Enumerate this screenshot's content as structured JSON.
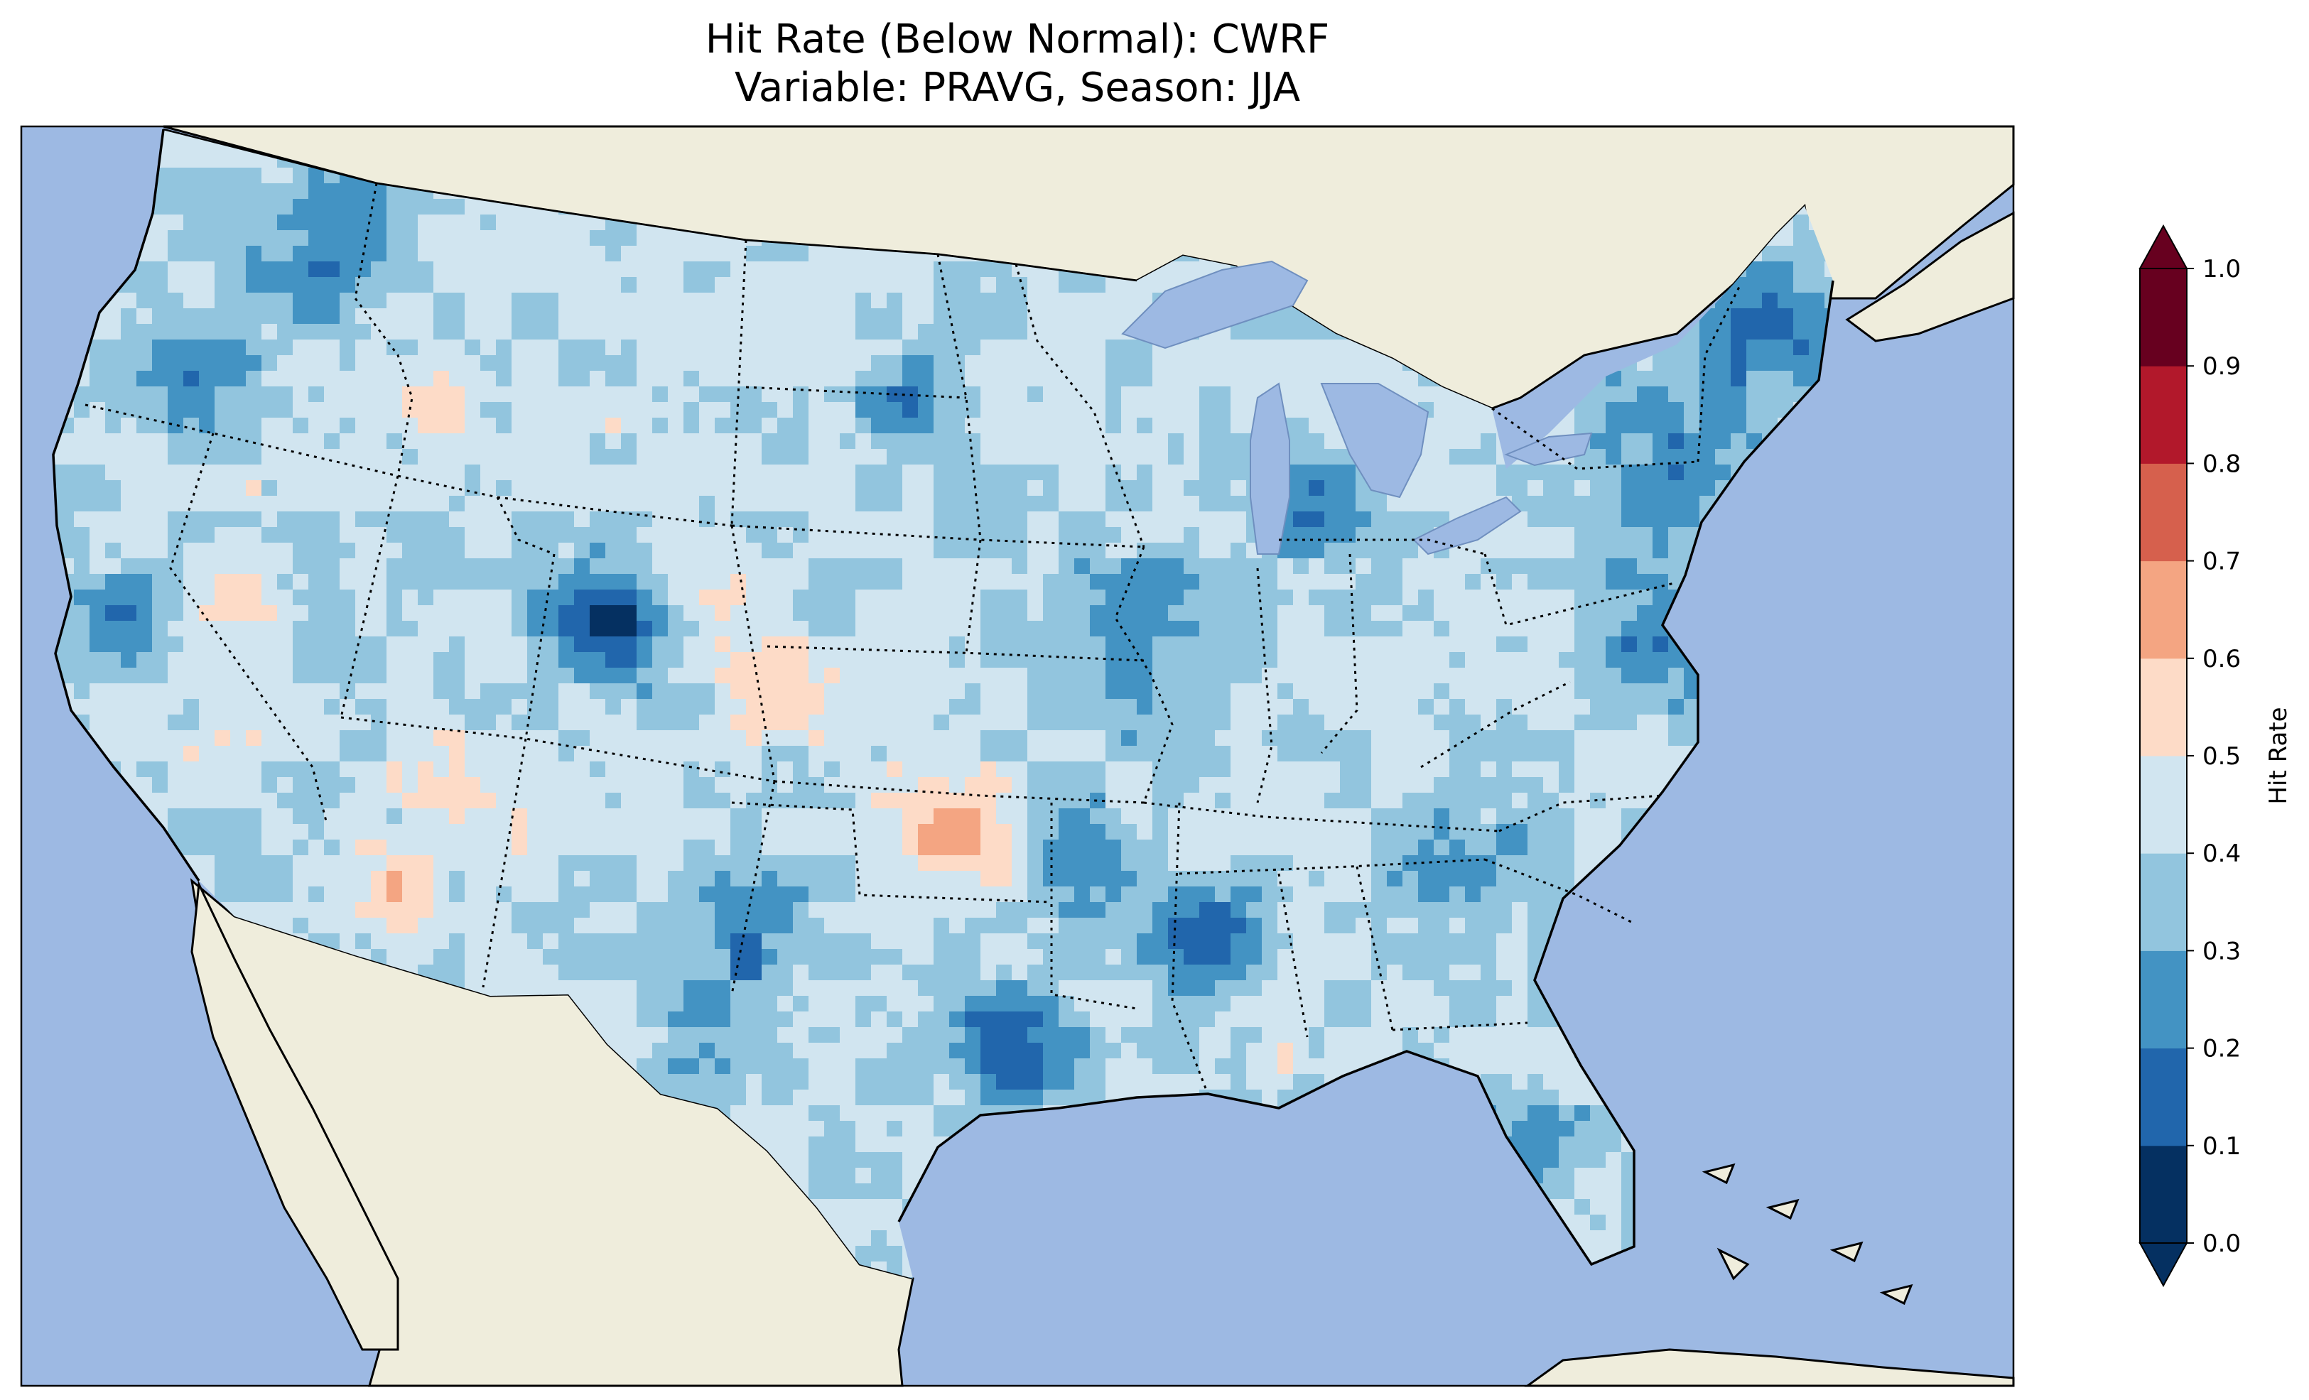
{
  "title": {
    "line1": "Hit Rate (Below Normal): CWRF",
    "line2": "Variable: PRAVG, Season: JJA"
  },
  "colorbar": {
    "label": "Hit Rate",
    "ticks": [
      "0.0",
      "0.1",
      "0.2",
      "0.3",
      "0.4",
      "0.5",
      "0.6",
      "0.7",
      "0.8",
      "0.9",
      "1.0"
    ],
    "colors": [
      "#053061",
      "#2166ac",
      "#4393c3",
      "#92c5de",
      "#d1e5f0",
      "#fddbc7",
      "#f4a582",
      "#d6604d",
      "#b2182b",
      "#67001f"
    ],
    "extend": "both"
  },
  "map": {
    "ocean_color": "#9db9e3",
    "land_color": "#efeddc",
    "colormap": "RdBu_r",
    "range": [
      0.0,
      1.0
    ]
  }
}
